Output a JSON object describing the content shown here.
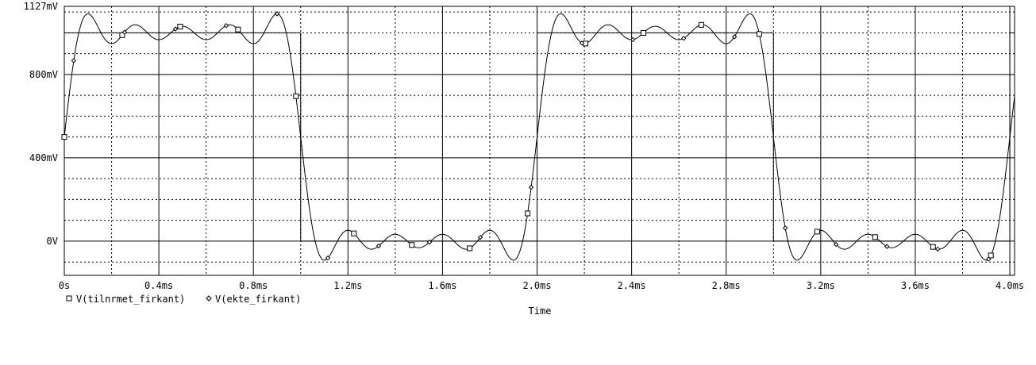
{
  "chart_data": {
    "type": "line",
    "xlabel": "Time",
    "ylabel": "",
    "xlim": [
      0,
      4.02
    ],
    "ylim": [
      -164,
      1127
    ],
    "x_unit": "ms",
    "y_unit": "mV",
    "grid": true,
    "x_ticks": [
      {
        "value": 0,
        "label": "0s"
      },
      {
        "value": 0.4,
        "label": "0.4ms"
      },
      {
        "value": 0.8,
        "label": "0.8ms"
      },
      {
        "value": 1.2,
        "label": "1.2ms"
      },
      {
        "value": 1.6,
        "label": "1.6ms"
      },
      {
        "value": 2.0,
        "label": "2.0ms"
      },
      {
        "value": 2.4,
        "label": "2.4ms"
      },
      {
        "value": 2.8,
        "label": "2.8ms"
      },
      {
        "value": 3.2,
        "label": "3.2ms"
      },
      {
        "value": 3.6,
        "label": "3.6ms"
      },
      {
        "value": 4.0,
        "label": "4.0ms"
      }
    ],
    "y_ticks": [
      {
        "value": 1127,
        "label": "1127mV"
      },
      {
        "value": 800,
        "label": "800mV"
      },
      {
        "value": 400,
        "label": "400mV"
      },
      {
        "value": 0,
        "label": "0V"
      }
    ],
    "legend_placement": "bottom-left",
    "series": [
      {
        "name": "V(tilnrmet_firkant)",
        "marker": "square",
        "color": "#000000",
        "period_ms": 2.0,
        "amplitude_mV": 500,
        "offset_mV": 500,
        "harmonics": [
          1,
          3,
          5,
          7,
          9
        ]
      },
      {
        "name": "V(ekte_firkant)",
        "marker": "diamond",
        "color": "#000000",
        "period_ms": 2.0,
        "high_mV": 1000,
        "low_mV": 0,
        "duty": 0.5
      }
    ]
  }
}
